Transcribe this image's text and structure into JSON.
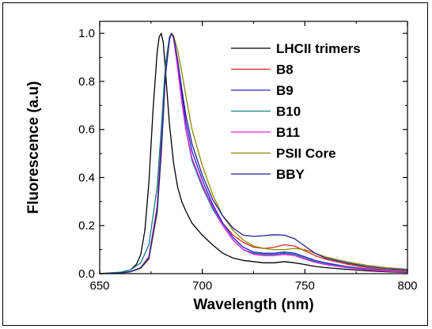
{
  "chart_data": {
    "type": "line",
    "xlabel": "Wavelength (nm)",
    "ylabel": "Fluorescence (a.u)",
    "xlim": [
      650,
      800
    ],
    "ylim": [
      0,
      1.05
    ],
    "xticks": [
      650,
      700,
      750,
      800
    ],
    "xtick_labels": [
      "650",
      "700",
      "750",
      "800"
    ],
    "yticks": [
      0,
      0.2,
      0.4,
      0.6,
      0.8,
      1.0
    ],
    "ytick_labels": [
      "0.0",
      "0.2",
      "0.4",
      "0.6",
      "0.8",
      "1.0"
    ],
    "legend_position": "top-right",
    "series": [
      {
        "name": "LHCII trimers",
        "color": "#000000",
        "x": [
          650,
          660,
          665,
          668,
          670,
          672,
          674,
          676,
          678,
          679,
          680,
          681,
          682,
          684,
          686,
          688,
          690,
          692,
          695,
          700,
          705,
          710,
          715,
          720,
          725,
          730,
          735,
          740,
          745,
          750,
          755,
          760,
          770,
          780,
          790,
          800
        ],
        "y": [
          0.0,
          0.005,
          0.015,
          0.04,
          0.08,
          0.18,
          0.38,
          0.68,
          0.92,
          0.985,
          1.0,
          0.96,
          0.85,
          0.62,
          0.46,
          0.36,
          0.3,
          0.26,
          0.21,
          0.16,
          0.12,
          0.085,
          0.065,
          0.055,
          0.05,
          0.045,
          0.045,
          0.05,
          0.045,
          0.038,
          0.03,
          0.025,
          0.018,
          0.012,
          0.008,
          0.005
        ]
      },
      {
        "name": "B8",
        "color": "#e8281e",
        "x": [
          650,
          660,
          665,
          670,
          674,
          678,
          680,
          682,
          684,
          685,
          686,
          688,
          690,
          692,
          695,
          700,
          705,
          710,
          715,
          720,
          725,
          730,
          735,
          740,
          745,
          750,
          755,
          760,
          770,
          780,
          790,
          800
        ],
        "y": [
          0.0,
          0.003,
          0.008,
          0.025,
          0.07,
          0.28,
          0.55,
          0.85,
          0.98,
          1.0,
          0.98,
          0.86,
          0.72,
          0.6,
          0.48,
          0.37,
          0.28,
          0.21,
          0.16,
          0.13,
          0.11,
          0.105,
          0.11,
          0.12,
          0.115,
          0.095,
          0.075,
          0.06,
          0.04,
          0.025,
          0.015,
          0.01
        ]
      },
      {
        "name": "B9",
        "color": "#2323d2",
        "x": [
          650,
          660,
          665,
          670,
          674,
          678,
          680,
          682,
          684,
          685,
          686,
          688,
          690,
          692,
          695,
          700,
          705,
          710,
          715,
          720,
          725,
          730,
          735,
          740,
          745,
          750,
          755,
          760,
          770,
          780,
          790,
          800
        ],
        "y": [
          0.0,
          0.003,
          0.008,
          0.025,
          0.07,
          0.27,
          0.53,
          0.84,
          0.98,
          1.0,
          0.985,
          0.88,
          0.75,
          0.63,
          0.51,
          0.39,
          0.29,
          0.21,
          0.15,
          0.11,
          0.09,
          0.085,
          0.085,
          0.09,
          0.085,
          0.07,
          0.055,
          0.045,
          0.03,
          0.02,
          0.012,
          0.008
        ]
      },
      {
        "name": "B10",
        "color": "#0f8080",
        "x": [
          650,
          660,
          665,
          670,
          674,
          678,
          680,
          682,
          684,
          685,
          686,
          688,
          690,
          692,
          695,
          700,
          705,
          710,
          715,
          720,
          725,
          730,
          735,
          740,
          745,
          750,
          755,
          760,
          770,
          780,
          790,
          800
        ],
        "y": [
          0.0,
          0.006,
          0.015,
          0.045,
          0.12,
          0.36,
          0.6,
          0.87,
          0.985,
          1.0,
          0.98,
          0.86,
          0.72,
          0.6,
          0.47,
          0.36,
          0.27,
          0.2,
          0.14,
          0.1,
          0.085,
          0.08,
          0.08,
          0.085,
          0.08,
          0.065,
          0.05,
          0.04,
          0.028,
          0.018,
          0.012,
          0.008
        ]
      },
      {
        "name": "B11",
        "color": "#ee1aee",
        "x": [
          650,
          660,
          665,
          670,
          674,
          678,
          680,
          682,
          684,
          685,
          686,
          688,
          690,
          692,
          695,
          700,
          705,
          710,
          715,
          720,
          725,
          730,
          735,
          740,
          745,
          750,
          755,
          760,
          770,
          780,
          790,
          800
        ],
        "y": [
          0.0,
          0.003,
          0.008,
          0.025,
          0.07,
          0.27,
          0.52,
          0.83,
          0.975,
          1.0,
          0.98,
          0.86,
          0.72,
          0.6,
          0.48,
          0.37,
          0.28,
          0.2,
          0.14,
          0.1,
          0.08,
          0.075,
          0.075,
          0.08,
          0.075,
          0.06,
          0.047,
          0.038,
          0.025,
          0.016,
          0.01,
          0.006
        ]
      },
      {
        "name": "PSII Core",
        "color": "#8a8a00",
        "x": [
          650,
          660,
          665,
          670,
          674,
          678,
          680,
          682,
          684,
          685,
          686,
          688,
          690,
          692,
          695,
          700,
          705,
          710,
          715,
          720,
          725,
          730,
          735,
          740,
          745,
          750,
          755,
          760,
          770,
          780,
          790,
          800
        ],
        "y": [
          0.0,
          0.003,
          0.008,
          0.022,
          0.06,
          0.25,
          0.5,
          0.82,
          0.975,
          1.0,
          0.99,
          0.93,
          0.84,
          0.74,
          0.6,
          0.45,
          0.33,
          0.24,
          0.18,
          0.14,
          0.115,
          0.105,
          0.1,
          0.1,
          0.105,
          0.1,
          0.085,
          0.07,
          0.05,
          0.035,
          0.025,
          0.018
        ]
      },
      {
        "name": "BBY",
        "color": "#1f1f8f",
        "x": [
          650,
          660,
          665,
          670,
          674,
          678,
          680,
          682,
          684,
          685,
          686,
          688,
          690,
          692,
          695,
          700,
          705,
          710,
          715,
          720,
          725,
          730,
          735,
          740,
          745,
          750,
          755,
          760,
          770,
          780,
          790,
          800
        ],
        "y": [
          0.0,
          0.003,
          0.008,
          0.024,
          0.065,
          0.26,
          0.5,
          0.82,
          0.975,
          1.0,
          0.985,
          0.89,
          0.77,
          0.66,
          0.54,
          0.41,
          0.31,
          0.24,
          0.19,
          0.16,
          0.155,
          0.158,
          0.162,
          0.16,
          0.145,
          0.115,
          0.085,
          0.065,
          0.045,
          0.03,
          0.02,
          0.015
        ]
      }
    ]
  }
}
